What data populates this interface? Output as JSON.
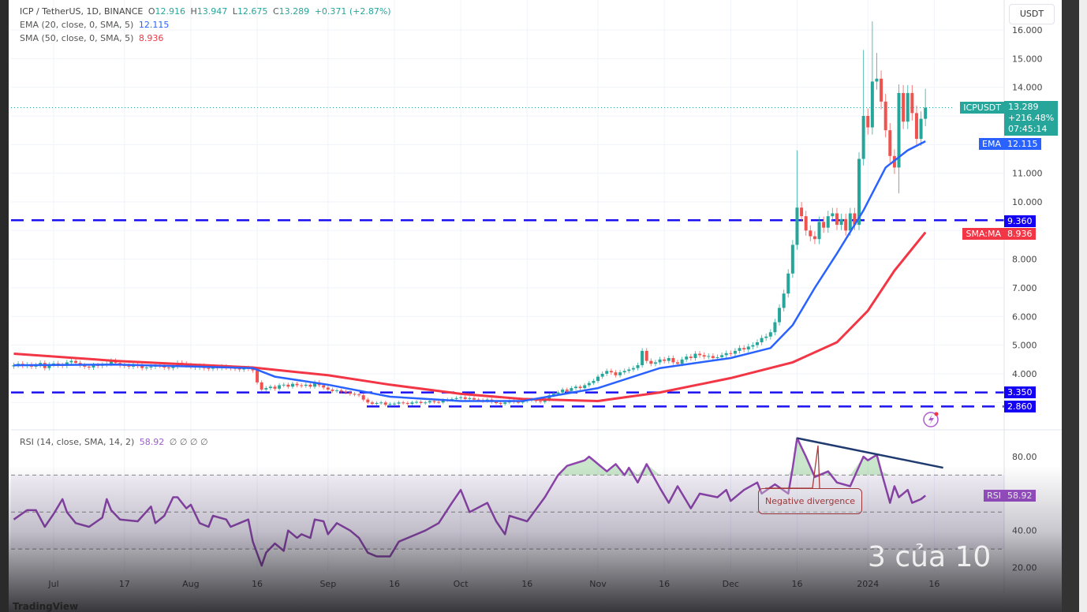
{
  "header": {
    "symbol_line": "ICP / TetherUS, 1D, BINANCE",
    "open_label": "O",
    "open": "12.916",
    "high_label": "H",
    "high": "13.947",
    "low_label": "L",
    "low": "12.675",
    "close_label": "C",
    "close": "13.289",
    "change": "+0.371 (+2.87%)",
    "ema_line": "EMA (20, close, 0, SMA, 5)",
    "ema_value": "12.115",
    "sma_line": "SMA (50, close, 0, SMA, 5)",
    "sma_value": "8.936",
    "rsi_line": "RSI (14, close, SMA, 14, 2)",
    "rsi_value": "58.92",
    "rsi_extra": "∅ ∅ ∅ ∅"
  },
  "price_axis": {
    "currency": "USDT",
    "ticks": [
      "16.000",
      "15.000",
      "14.000",
      "11.000",
      "10.000",
      "8.000",
      "7.000",
      "6.000",
      "5.000",
      "4.000"
    ],
    "tick_values": [
      16,
      15,
      14,
      11,
      10,
      8,
      7,
      6,
      5,
      4
    ],
    "tags": {
      "symbol_label": "ICPUSDT",
      "symbol_price": "13.289",
      "symbol_change": "+216.48%",
      "countdown": "07:45:14",
      "ema_label": "EMA",
      "ema_price": "12.115",
      "level_1": "9.360",
      "sma_label": "SMA:MA",
      "sma_price": "8.936",
      "level_2": "3.350",
      "level_3": "2.860",
      "rsi_label": "RSI",
      "rsi_price": "58.92"
    }
  },
  "rsi_axis": {
    "ticks": [
      "80.00",
      "40.00",
      "20.00"
    ],
    "tick_values": [
      80,
      40,
      20
    ],
    "bands": [
      70,
      50,
      30
    ]
  },
  "time_axis": {
    "labels": [
      "Jul",
      "17",
      "Aug",
      "16",
      "Sep",
      "16",
      "Oct",
      "16",
      "Nov",
      "16",
      "Dec",
      "16",
      "2024",
      "16"
    ],
    "dates": [
      "2023-07-01",
      "2023-07-17",
      "2023-08-01",
      "2023-08-16",
      "2023-09-01",
      "2023-09-16",
      "2023-10-01",
      "2023-10-16",
      "2023-11-01",
      "2023-11-16",
      "2023-12-01",
      "2023-12-16",
      "2024-01-01",
      "2024-01-16"
    ]
  },
  "annotation": {
    "divergence_text": "Negative divergence"
  },
  "overlay": {
    "pager_text": "3 của 10",
    "brand": "TradingView"
  },
  "colors": {
    "up": "#26a69a",
    "down": "#ef5350",
    "ema": "#2962ff",
    "sma": "#f23645",
    "levels": "#1a10f0",
    "rsi": "#8e44ad",
    "trendline": "#1e3a6e",
    "annotation": "#b03a3a"
  },
  "chart_data": [
    {
      "type": "candlestick",
      "title": "ICP / TetherUS, 1D, BINANCE",
      "start_date": "2023-06-22",
      "ylim": [
        2.5,
        16.5
      ],
      "closes": [
        4.3,
        4.35,
        4.28,
        4.32,
        4.25,
        4.3,
        4.38,
        4.2,
        4.32,
        4.36,
        4.3,
        4.28,
        4.4,
        4.45,
        4.38,
        4.3,
        4.25,
        4.22,
        4.3,
        4.28,
        4.32,
        4.35,
        4.45,
        4.38,
        4.3,
        4.28,
        4.25,
        4.3,
        4.28,
        4.2,
        4.22,
        4.25,
        4.3,
        4.28,
        4.22,
        4.2,
        4.25,
        4.38,
        4.35,
        4.3,
        4.25,
        4.22,
        4.28,
        4.2,
        4.18,
        4.22,
        4.2,
        4.25,
        4.22,
        4.2,
        4.18,
        4.15,
        4.2,
        4.18,
        4.12,
        3.7,
        3.45,
        3.5,
        3.55,
        3.48,
        3.6,
        3.62,
        3.55,
        3.65,
        3.6,
        3.58,
        3.62,
        3.55,
        3.7,
        3.6,
        3.52,
        3.45,
        3.4,
        3.42,
        3.38,
        3.35,
        3.3,
        3.28,
        3.25,
        3.1,
        3.0,
        2.95,
        2.98,
        3.0,
        2.92,
        2.95,
        2.96,
        3.0,
        2.98,
        2.95,
        3.0,
        3.02,
        2.98,
        3.0,
        3.05,
        3.02,
        3.0,
        3.08,
        3.1,
        3.12,
        3.15,
        3.18,
        3.12,
        3.15,
        3.1,
        3.08,
        3.05,
        3.1,
        3.02,
        2.98,
        2.95,
        3.0,
        3.05,
        3.02,
        3.0,
        3.05,
        3.08,
        3.1,
        3.05,
        3.02,
        3.1,
        3.25,
        3.3,
        3.35,
        3.45,
        3.4,
        3.5,
        3.55,
        3.5,
        3.6,
        3.68,
        3.75,
        3.9,
        4.0,
        4.1,
        4.05,
        3.95,
        4.05,
        4.1,
        4.15,
        4.2,
        4.3,
        4.8,
        4.45,
        4.35,
        4.4,
        4.5,
        4.45,
        4.55,
        4.4,
        4.35,
        4.5,
        4.6,
        4.55,
        4.7,
        4.65,
        4.6,
        4.62,
        4.55,
        4.58,
        4.65,
        4.72,
        4.7,
        4.8,
        4.9,
        4.85,
        4.95,
        5.0,
        5.1,
        5.25,
        5.3,
        5.45,
        5.8,
        6.3,
        6.8,
        7.5,
        8.5,
        9.8,
        9.5,
        9.0,
        8.8,
        8.7,
        9.3,
        9.1,
        9.5,
        9.6,
        9.2,
        9.4,
        9.0,
        9.6,
        9.2,
        11.5,
        13.0,
        12.6,
        14.2,
        14.3,
        13.5,
        12.5,
        11.6,
        11.2,
        13.8,
        12.8,
        13.8,
        13.1,
        12.2,
        12.9,
        13.289
      ],
      "notable_highs": {
        "2023-12-16": 11.8,
        "2023-12-31": 15.3,
        "2024-01-02": 16.3,
        "2024-01-03": 15.2,
        "2024-01-08": 14.1,
        "2024-01-14": 13.947
      },
      "notable_lows": {
        "2024-01-08": 10.3
      },
      "series": [
        {
          "name": "EMA",
          "points": [
            [
              "2023-06-22",
              4.3
            ],
            [
              "2023-07-15",
              4.32
            ],
            [
              "2023-08-15",
              4.2
            ],
            [
              "2023-08-20",
              3.9
            ],
            [
              "2023-09-01",
              3.62
            ],
            [
              "2023-09-15",
              3.2
            ],
            [
              "2023-10-01",
              3.05
            ],
            [
              "2023-10-15",
              3.05
            ],
            [
              "2023-11-01",
              3.5
            ],
            [
              "2023-11-15",
              4.2
            ],
            [
              "2023-12-01",
              4.55
            ],
            [
              "2023-12-10",
              4.9
            ],
            [
              "2023-12-15",
              5.7
            ],
            [
              "2023-12-20",
              7.0
            ],
            [
              "2023-12-25",
              8.2
            ],
            [
              "2023-12-31",
              9.7
            ],
            [
              "2024-01-05",
              11.2
            ],
            [
              "2024-01-10",
              11.8
            ],
            [
              "2024-01-14",
              12.115
            ]
          ]
        },
        {
          "name": "SMA:MA",
          "points": [
            [
              "2023-06-22",
              4.7
            ],
            [
              "2023-07-15",
              4.45
            ],
            [
              "2023-08-15",
              4.22
            ],
            [
              "2023-09-01",
              3.95
            ],
            [
              "2023-09-15",
              3.62
            ],
            [
              "2023-10-01",
              3.3
            ],
            [
              "2023-10-15",
              3.12
            ],
            [
              "2023-11-01",
              3.05
            ],
            [
              "2023-11-15",
              3.35
            ],
            [
              "2023-12-01",
              3.85
            ],
            [
              "2023-12-15",
              4.4
            ],
            [
              "2023-12-25",
              5.1
            ],
            [
              "2024-01-01",
              6.2
            ],
            [
              "2024-01-07",
              7.6
            ],
            [
              "2024-01-14",
              8.936
            ]
          ]
        }
      ],
      "horizontal_levels": [
        9.36,
        3.35,
        2.86
      ]
    },
    {
      "type": "line",
      "title": "RSI (14, close, SMA, 14, 2)",
      "ylim": [
        15,
        95
      ],
      "series": [
        {
          "name": "RSI",
          "points": [
            [
              "2023-06-22",
              46
            ],
            [
              "2023-06-25",
              51
            ],
            [
              "2023-06-27",
              51
            ],
            [
              "2023-06-29",
              42
            ],
            [
              "2023-07-01",
              49
            ],
            [
              "2023-07-03",
              57
            ],
            [
              "2023-07-04",
              50
            ],
            [
              "2023-07-06",
              44
            ],
            [
              "2023-07-09",
              42
            ],
            [
              "2023-07-12",
              47
            ],
            [
              "2023-07-13",
              57
            ],
            [
              "2023-07-14",
              51
            ],
            [
              "2023-07-16",
              46
            ],
            [
              "2023-07-20",
              45
            ],
            [
              "2023-07-23",
              53
            ],
            [
              "2023-07-24",
              44
            ],
            [
              "2023-07-26",
              48
            ],
            [
              "2023-07-28",
              58
            ],
            [
              "2023-07-29",
              58
            ],
            [
              "2023-07-31",
              52
            ],
            [
              "2023-08-01",
              54
            ],
            [
              "2023-08-03",
              44
            ],
            [
              "2023-08-05",
              42
            ],
            [
              "2023-08-06",
              48
            ],
            [
              "2023-08-09",
              46
            ],
            [
              "2023-08-10",
              42
            ],
            [
              "2023-08-12",
              44
            ],
            [
              "2023-08-14",
              46
            ],
            [
              "2023-08-15",
              34
            ],
            [
              "2023-08-17",
              21
            ],
            [
              "2023-08-18",
              28
            ],
            [
              "2023-08-20",
              33
            ],
            [
              "2023-08-22",
              29
            ],
            [
              "2023-08-23",
              40
            ],
            [
              "2023-08-25",
              36
            ],
            [
              "2023-08-26",
              38
            ],
            [
              "2023-08-28",
              36
            ],
            [
              "2023-08-29",
              46
            ],
            [
              "2023-08-31",
              45
            ],
            [
              "2023-09-01",
              38
            ],
            [
              "2023-09-03",
              44
            ],
            [
              "2023-09-06",
              40
            ],
            [
              "2023-09-08",
              36
            ],
            [
              "2023-09-10",
              28
            ],
            [
              "2023-09-12",
              26
            ],
            [
              "2023-09-15",
              26
            ],
            [
              "2023-09-17",
              34
            ],
            [
              "2023-09-19",
              36
            ],
            [
              "2023-09-23",
              40
            ],
            [
              "2023-09-26",
              44
            ],
            [
              "2023-09-29",
              55
            ],
            [
              "2023-10-01",
              62
            ],
            [
              "2023-10-03",
              50
            ],
            [
              "2023-10-07",
              55
            ],
            [
              "2023-10-09",
              45
            ],
            [
              "2023-10-11",
              38
            ],
            [
              "2023-10-12",
              48
            ],
            [
              "2023-10-16",
              45
            ],
            [
              "2023-10-20",
              58
            ],
            [
              "2023-10-23",
              70
            ],
            [
              "2023-10-25",
              75
            ],
            [
              "2023-10-29",
              78
            ],
            [
              "2023-10-30",
              80
            ],
            [
              "2023-11-03",
              72
            ],
            [
              "2023-11-05",
              76
            ],
            [
              "2023-11-07",
              70
            ],
            [
              "2023-11-08",
              74
            ],
            [
              "2023-11-10",
              66
            ],
            [
              "2023-11-12",
              76
            ],
            [
              "2023-11-15",
              63
            ],
            [
              "2023-11-17",
              55
            ],
            [
              "2023-11-19",
              64
            ],
            [
              "2023-11-22",
              52
            ],
            [
              "2023-11-24",
              60
            ],
            [
              "2023-11-28",
              58
            ],
            [
              "2023-11-30",
              62
            ],
            [
              "2023-12-01",
              56
            ],
            [
              "2023-12-04",
              62
            ],
            [
              "2023-12-07",
              66
            ],
            [
              "2023-12-08",
              60
            ],
            [
              "2023-12-11",
              65
            ],
            [
              "2023-12-14",
              60
            ],
            [
              "2023-12-15",
              74
            ],
            [
              "2023-12-16",
              90
            ],
            [
              "2023-12-18",
              80
            ],
            [
              "2023-12-20",
              69
            ],
            [
              "2023-12-23",
              72
            ],
            [
              "2023-12-25",
              66
            ],
            [
              "2023-12-28",
              64
            ],
            [
              "2023-12-31",
              80
            ],
            [
              "2024-01-01",
              78
            ],
            [
              "2024-01-03",
              81
            ],
            [
              "2024-01-04",
              72
            ],
            [
              "2024-01-06",
              55
            ],
            [
              "2024-01-07",
              64
            ],
            [
              "2024-01-08",
              58
            ],
            [
              "2024-01-10",
              62
            ],
            [
              "2024-01-11",
              55
            ],
            [
              "2024-01-13",
              57
            ],
            [
              "2024-01-14",
              58.92
            ]
          ]
        }
      ],
      "trendline": [
        [
          "2023-12-16",
          90
        ],
        [
          "2024-01-18",
          74
        ]
      ]
    }
  ]
}
